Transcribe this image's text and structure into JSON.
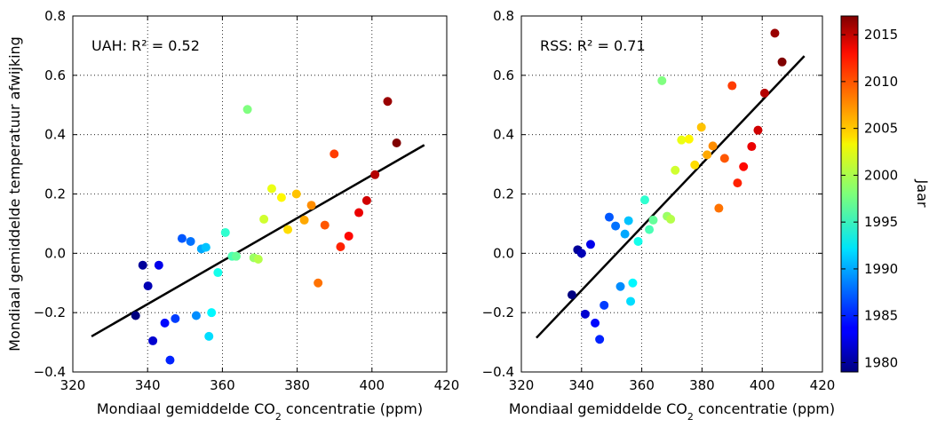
{
  "chart_data": [
    {
      "type": "scatter",
      "annotation": "UAH: R² = 0.52",
      "ylabel": "Mondiaal gemiddelde temperatuur afwijking",
      "xlabel_parts": [
        "Mondiaal gemiddelde CO",
        "2",
        " concentratie (ppm)"
      ],
      "xlim": [
        320,
        420
      ],
      "ylim": [
        -0.4,
        0.8
      ],
      "xticks": [
        "320",
        "340",
        "360",
        "380",
        "400",
        "420"
      ],
      "yticks": [
        "−0.4",
        "−0.2",
        "0.0",
        "0.2",
        "0.4",
        "0.6",
        "0.8"
      ],
      "grid": true,
      "trendline": {
        "x": [
          325,
          414
        ],
        "y": [
          -0.28,
          0.365
        ]
      },
      "points": [
        {
          "x": 336.8,
          "y": -0.21,
          "year": 1979
        },
        {
          "x": 338.7,
          "y": -0.04,
          "year": 1980
        },
        {
          "x": 340.1,
          "y": -0.11,
          "year": 1981
        },
        {
          "x": 341.4,
          "y": -0.295,
          "year": 1982
        },
        {
          "x": 343.0,
          "y": -0.04,
          "year": 1983
        },
        {
          "x": 344.6,
          "y": -0.235,
          "year": 1984
        },
        {
          "x": 346.0,
          "y": -0.36,
          "year": 1985
        },
        {
          "x": 347.4,
          "y": -0.22,
          "year": 1986
        },
        {
          "x": 349.2,
          "y": 0.05,
          "year": 1987
        },
        {
          "x": 351.5,
          "y": 0.04,
          "year": 1988
        },
        {
          "x": 353.0,
          "y": -0.21,
          "year": 1989
        },
        {
          "x": 354.4,
          "y": 0.015,
          "year": 1990
        },
        {
          "x": 355.6,
          "y": 0.02,
          "year": 1991
        },
        {
          "x": 356.4,
          "y": -0.28,
          "year": 1992
        },
        {
          "x": 357.1,
          "y": -0.2,
          "year": 1993
        },
        {
          "x": 358.8,
          "y": -0.065,
          "year": 1994
        },
        {
          "x": 360.8,
          "y": 0.07,
          "year": 1995
        },
        {
          "x": 362.6,
          "y": -0.01,
          "year": 1996
        },
        {
          "x": 363.7,
          "y": -0.01,
          "year": 1997
        },
        {
          "x": 366.7,
          "y": 0.485,
          "year": 1998
        },
        {
          "x": 368.4,
          "y": -0.015,
          "year": 1999
        },
        {
          "x": 369.6,
          "y": -0.02,
          "year": 2000
        },
        {
          "x": 371.1,
          "y": 0.115,
          "year": 2001
        },
        {
          "x": 373.2,
          "y": 0.218,
          "year": 2002
        },
        {
          "x": 375.8,
          "y": 0.188,
          "year": 2003
        },
        {
          "x": 377.5,
          "y": 0.08,
          "year": 2004
        },
        {
          "x": 379.8,
          "y": 0.2,
          "year": 2005
        },
        {
          "x": 381.9,
          "y": 0.112,
          "year": 2006
        },
        {
          "x": 383.8,
          "y": 0.162,
          "year": 2007
        },
        {
          "x": 385.6,
          "y": -0.1,
          "year": 2008
        },
        {
          "x": 387.4,
          "y": 0.095,
          "year": 2009
        },
        {
          "x": 389.9,
          "y": 0.335,
          "year": 2010
        },
        {
          "x": 391.6,
          "y": 0.022,
          "year": 2011
        },
        {
          "x": 393.8,
          "y": 0.058,
          "year": 2012
        },
        {
          "x": 396.5,
          "y": 0.137,
          "year": 2013
        },
        {
          "x": 398.6,
          "y": 0.178,
          "year": 2014
        },
        {
          "x": 400.8,
          "y": 0.265,
          "year": 2015
        },
        {
          "x": 404.2,
          "y": 0.512,
          "year": 2016
        },
        {
          "x": 406.6,
          "y": 0.372,
          "year": 2017
        }
      ]
    },
    {
      "type": "scatter",
      "annotation": "RSS: R² = 0.71",
      "ylabel": "",
      "xlabel_parts": [
        "Mondiaal gemiddelde CO",
        "2",
        " concentratie (ppm)"
      ],
      "xlim": [
        320,
        420
      ],
      "ylim": [
        -0.4,
        0.8
      ],
      "xticks": [
        "320",
        "340",
        "360",
        "380",
        "400",
        "420"
      ],
      "yticks": [
        "−0.4",
        "−0.2",
        "0.0",
        "0.2",
        "0.4",
        "0.6",
        "0.8"
      ],
      "grid": true,
      "trendline": {
        "x": [
          325,
          414
        ],
        "y": [
          -0.285,
          0.665
        ]
      },
      "points": [
        {
          "x": 336.8,
          "y": -0.14,
          "year": 1979
        },
        {
          "x": 338.7,
          "y": 0.012,
          "year": 1980
        },
        {
          "x": 340.0,
          "y": 0.0,
          "year": 1981
        },
        {
          "x": 341.2,
          "y": -0.205,
          "year": 1982
        },
        {
          "x": 343.0,
          "y": 0.03,
          "year": 1983
        },
        {
          "x": 344.5,
          "y": -0.235,
          "year": 1984
        },
        {
          "x": 346.0,
          "y": -0.29,
          "year": 1985
        },
        {
          "x": 347.5,
          "y": -0.175,
          "year": 1986
        },
        {
          "x": 349.2,
          "y": 0.122,
          "year": 1987
        },
        {
          "x": 351.3,
          "y": 0.092,
          "year": 1988
        },
        {
          "x": 352.9,
          "y": -0.112,
          "year": 1989
        },
        {
          "x": 354.4,
          "y": 0.065,
          "year": 1990
        },
        {
          "x": 355.6,
          "y": 0.11,
          "year": 1991
        },
        {
          "x": 356.3,
          "y": -0.162,
          "year": 1992
        },
        {
          "x": 357.0,
          "y": -0.1,
          "year": 1993
        },
        {
          "x": 358.8,
          "y": 0.04,
          "year": 1994
        },
        {
          "x": 361.0,
          "y": 0.18,
          "year": 1995
        },
        {
          "x": 362.5,
          "y": 0.08,
          "year": 1996
        },
        {
          "x": 363.8,
          "y": 0.112,
          "year": 1997
        },
        {
          "x": 366.7,
          "y": 0.582,
          "year": 1998
        },
        {
          "x": 368.4,
          "y": 0.125,
          "year": 1999
        },
        {
          "x": 369.6,
          "y": 0.115,
          "year": 2000
        },
        {
          "x": 371.1,
          "y": 0.28,
          "year": 2001
        },
        {
          "x": 373.2,
          "y": 0.382,
          "year": 2002
        },
        {
          "x": 375.7,
          "y": 0.385,
          "year": 2003
        },
        {
          "x": 377.6,
          "y": 0.298,
          "year": 2004
        },
        {
          "x": 379.8,
          "y": 0.425,
          "year": 2005
        },
        {
          "x": 381.7,
          "y": 0.332,
          "year": 2006
        },
        {
          "x": 383.6,
          "y": 0.362,
          "year": 2007
        },
        {
          "x": 385.6,
          "y": 0.152,
          "year": 2008
        },
        {
          "x": 387.5,
          "y": 0.32,
          "year": 2009
        },
        {
          "x": 390.0,
          "y": 0.565,
          "year": 2010
        },
        {
          "x": 391.8,
          "y": 0.237,
          "year": 2011
        },
        {
          "x": 393.8,
          "y": 0.292,
          "year": 2012
        },
        {
          "x": 396.5,
          "y": 0.36,
          "year": 2013
        },
        {
          "x": 398.6,
          "y": 0.415,
          "year": 2014
        },
        {
          "x": 400.8,
          "y": 0.54,
          "year": 2015
        },
        {
          "x": 404.2,
          "y": 0.742,
          "year": 2016
        },
        {
          "x": 406.6,
          "y": 0.645,
          "year": 2017
        }
      ]
    }
  ],
  "colorbar": {
    "label": "Jaar",
    "range": [
      1979,
      2017
    ],
    "ticks": [
      {
        "label": "1980",
        "value": 1980
      },
      {
        "label": "1985",
        "value": 1985
      },
      {
        "label": "1990",
        "value": 1990
      },
      {
        "label": "1995",
        "value": 1995
      },
      {
        "label": "2000",
        "value": 2000
      },
      {
        "label": "2005",
        "value": 2005
      },
      {
        "label": "2010",
        "value": 2010
      },
      {
        "label": "2015",
        "value": 2015
      }
    ],
    "colormap": "jet"
  },
  "colors": {
    "trendline": "#000000",
    "grid": "#000000",
    "axes": "#000000"
  }
}
